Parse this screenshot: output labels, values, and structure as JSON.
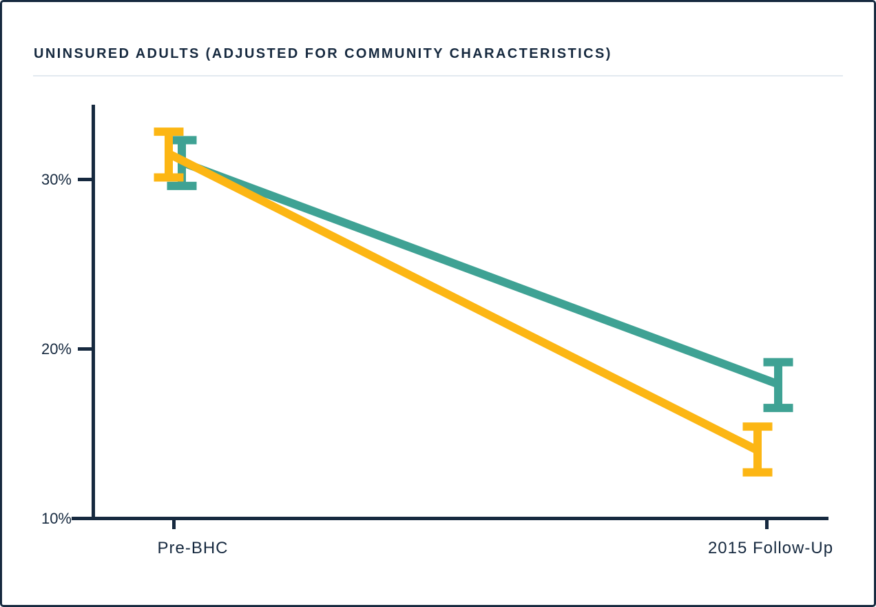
{
  "header": {
    "title": "UNINSURED ADULTS (ADJUSTED FOR COMMUNITY CHARACTERISTICS)"
  },
  "chart_data": {
    "type": "line",
    "title": "UNINSURED ADULTS (ADJUSTED FOR COMMUNITY CHARACTERISTICS)",
    "categories": [
      "Pre-BHC",
      "2015 Follow-Up"
    ],
    "y_ticks": [
      10,
      20,
      30
    ],
    "y_tick_labels": [
      "10%",
      "20%",
      "30%"
    ],
    "ylim": [
      10,
      34.5
    ],
    "grid": false,
    "legend": "none",
    "error_bars": true,
    "series": [
      {
        "name": "yellow-series",
        "color": "#FCB614",
        "values": [
          31.5,
          14.0
        ],
        "error_low": [
          30.1,
          12.7
        ],
        "error_high": [
          32.8,
          15.4
        ]
      },
      {
        "name": "teal-series",
        "color": "#3FA294",
        "values": [
          31.0,
          17.9
        ],
        "error_low": [
          29.6,
          16.5
        ],
        "error_high": [
          32.3,
          19.2
        ]
      }
    ],
    "colors": {
      "axis": "#16293F",
      "text": "#16293F",
      "divider": "#E2E9F0",
      "background": "#FFFFFF",
      "border": "#16293F"
    }
  }
}
